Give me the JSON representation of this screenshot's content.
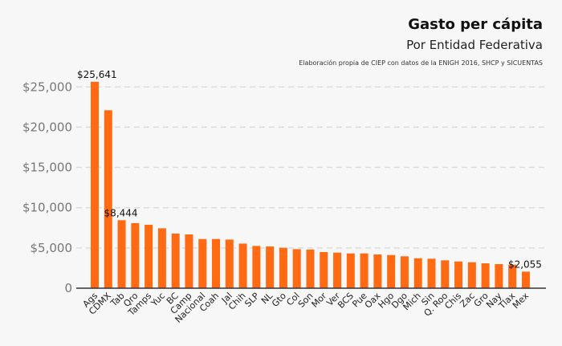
{
  "chart_data": {
    "type": "bar",
    "title": "Gasto per cápita",
    "subtitle": "Por Entidad Federativa",
    "caption": "Elaboración propia de CIEP con datos de la ENIGH 2016, SHCP y SICUENTAS",
    "xlabel": "",
    "ylabel": "",
    "ylim": [
      0,
      25641
    ],
    "yticks": [
      0,
      5000,
      10000,
      15000,
      20000,
      25000
    ],
    "ytick_labels": [
      "0",
      "$5,000",
      "$10,000",
      "$15,000",
      "$20,000",
      "$25,000"
    ],
    "grid": "horizontal dashed",
    "bar_color": "#ff6a13",
    "categories": [
      "Ags",
      "CDMX",
      "Tab",
      "Qro",
      "Tamps",
      "Yuc",
      "BC",
      "Camp",
      "Nacional",
      "Coah",
      "Jal",
      "Chih",
      "SLP",
      "NL",
      "Gto",
      "Col",
      "Son",
      "Mor",
      "Ver",
      "BCS",
      "Pue",
      "Oax",
      "Hgo",
      "Dgo",
      "Mich",
      "Sin",
      "Q. Roo",
      "Chis",
      "Zac",
      "Gro",
      "Nay",
      "Tlax",
      "Mex"
    ],
    "values": [
      25641,
      22100,
      8444,
      8080,
      7880,
      7440,
      6780,
      6680,
      6110,
      6110,
      6040,
      5540,
      5250,
      5180,
      5020,
      4850,
      4800,
      4490,
      4420,
      4320,
      4320,
      4190,
      4120,
      3960,
      3720,
      3660,
      3460,
      3320,
      3220,
      3090,
      2990,
      2920,
      2055
    ],
    "data_labels": [
      {
        "category": "Ags",
        "text": "$25,641"
      },
      {
        "category": "Tab",
        "text": "$8,444"
      },
      {
        "category": "Mex",
        "text": "$2,055"
      }
    ]
  }
}
